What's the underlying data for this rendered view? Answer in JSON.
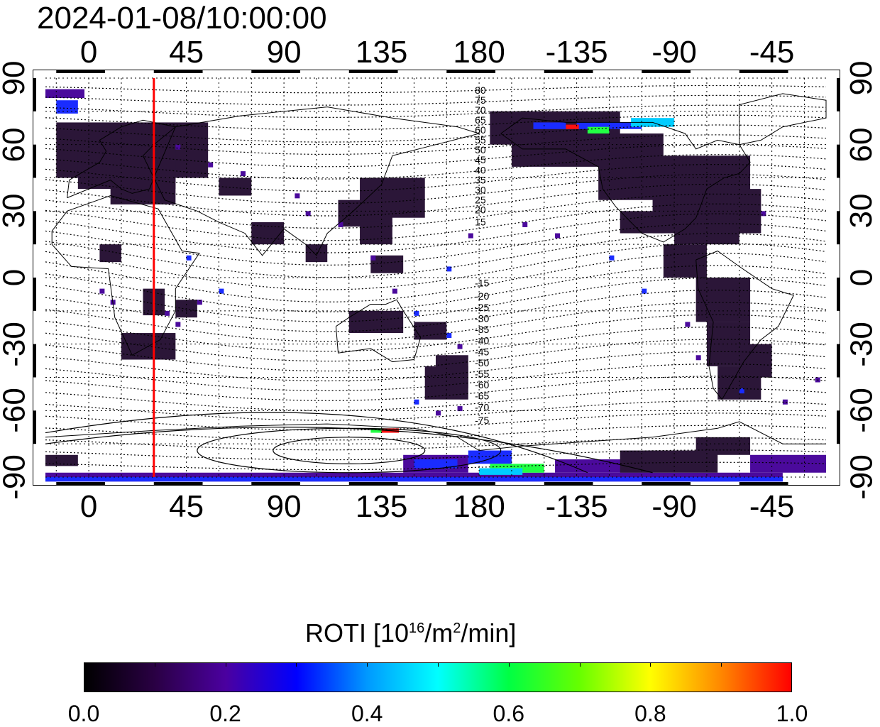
{
  "title": "2024-01-08/10:00:00",
  "top_axis": {
    "ticks": [
      "0",
      "45",
      "90",
      "135",
      "180",
      "-135",
      "-90",
      "-45"
    ]
  },
  "bottom_axis": {
    "ticks": [
      "0",
      "45",
      "90",
      "135",
      "180",
      "-135",
      "-90",
      "-45"
    ]
  },
  "left_axis": {
    "ticks": [
      "90",
      "60",
      "30",
      "0",
      "-30",
      "-60",
      "-90"
    ]
  },
  "right_axis": {
    "ticks": [
      "90",
      "60",
      "30",
      "0",
      "-30",
      "-60",
      "-90"
    ]
  },
  "map": {
    "projection": "equirectangular",
    "lon_range": [
      -20,
      340
    ],
    "lat_range": [
      -90,
      90
    ],
    "grid": "dashed 15-degree grid",
    "terminator_line_color": "#ff0000",
    "terminator_longitude": 30,
    "magnetic_contour_labels_north": [
      "80",
      "75",
      "70",
      "65",
      "60",
      "55",
      "50",
      "45",
      "40",
      "35",
      "30",
      "25",
      "20",
      "15"
    ],
    "magnetic_contour_labels_south": [
      "-15",
      "-20",
      "-25",
      "-30",
      "-35",
      "-40",
      "-45",
      "-50",
      "-55",
      "-60",
      "-65",
      "-70",
      "-75"
    ],
    "contour_label_longitude": 180
  },
  "colorbar": {
    "label_prefix": "ROTI  [10",
    "label_exp1": "16",
    "label_mid": "/m",
    "label_exp2": "2",
    "label_suffix": "/min]",
    "ticks": [
      "0.0",
      "0.2",
      "0.4",
      "0.6",
      "0.8",
      "1.0"
    ],
    "range": [
      0.0,
      1.0
    ],
    "colors": [
      "#000000",
      "#2a0044",
      "#4b00a0",
      "#0000ff",
      "#0099ff",
      "#00ffff",
      "#00ff44",
      "#66ff00",
      "#ffff00",
      "#ff8800",
      "#ff0000"
    ]
  }
}
